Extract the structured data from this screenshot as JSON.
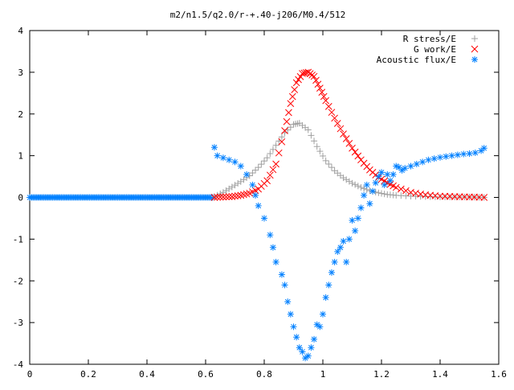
{
  "chart_data": {
    "type": "scatter",
    "title": "m2/n1.5/q2.0/r-+.40-j206/M0.4/512",
    "xlabel": "",
    "ylabel": "",
    "xlim": [
      0,
      1.6
    ],
    "ylim": [
      -4,
      4
    ],
    "x_ticks": [
      "0",
      "0.2",
      "0.4",
      "0.6",
      "0.8",
      "1",
      "1.2",
      "1.4",
      "1.6"
    ],
    "y_ticks": [
      "4",
      "3",
      "2",
      "1",
      "0",
      "-1",
      "-2",
      "-3",
      "-4"
    ],
    "grid": false,
    "legend_position": "top-right",
    "series": [
      {
        "name": "R stress/E",
        "color": "#a0a0a0",
        "marker": "plus",
        "x": [
          0.63,
          0.66,
          0.69,
          0.72,
          0.75,
          0.78,
          0.81,
          0.84,
          0.87,
          0.9,
          0.92,
          0.95,
          0.98,
          1.01,
          1.04,
          1.07,
          1.1,
          1.13,
          1.16,
          1.19,
          1.22,
          1.25,
          1.3,
          1.35,
          1.4,
          1.45,
          1.5,
          1.55
        ],
        "y": [
          0.02,
          0.12,
          0.25,
          0.38,
          0.52,
          0.72,
          0.95,
          1.25,
          1.55,
          1.75,
          1.78,
          1.62,
          1.22,
          0.88,
          0.64,
          0.47,
          0.34,
          0.24,
          0.16,
          0.11,
          0.07,
          0.05,
          0.03,
          0.02,
          0.01,
          0.01,
          0.01,
          0.0
        ]
      },
      {
        "name": "G work/E",
        "color": "#ff0000",
        "marker": "cross",
        "x": [
          0.63,
          0.66,
          0.69,
          0.72,
          0.75,
          0.78,
          0.81,
          0.84,
          0.87,
          0.89,
          0.91,
          0.93,
          0.95,
          0.97,
          0.99,
          1.01,
          1.04,
          1.07,
          1.1,
          1.13,
          1.16,
          1.19,
          1.22,
          1.25,
          1.3,
          1.35,
          1.4,
          1.45,
          1.5,
          1.55
        ],
        "y": [
          0.0,
          0.01,
          0.02,
          0.05,
          0.1,
          0.2,
          0.4,
          0.8,
          1.6,
          2.25,
          2.75,
          2.97,
          3.0,
          2.9,
          2.62,
          2.32,
          1.9,
          1.52,
          1.18,
          0.9,
          0.66,
          0.48,
          0.35,
          0.24,
          0.12,
          0.06,
          0.03,
          0.02,
          0.01,
          0.0
        ]
      },
      {
        "name": "Acoustic flux/E",
        "color": "#0080ff",
        "marker": "star",
        "x": [
          0.63,
          0.64,
          0.66,
          0.68,
          0.7,
          0.72,
          0.74,
          0.76,
          0.77,
          0.78,
          0.8,
          0.82,
          0.83,
          0.84,
          0.86,
          0.87,
          0.88,
          0.89,
          0.9,
          0.91,
          0.92,
          0.93,
          0.94,
          0.95,
          0.96,
          0.97,
          0.98,
          0.99,
          1.0,
          1.01,
          1.02,
          1.03,
          1.04,
          1.05,
          1.06,
          1.07,
          1.08,
          1.09,
          1.1,
          1.11,
          1.12,
          1.13,
          1.14,
          1.15,
          1.16,
          1.17,
          1.18,
          1.19,
          1.2,
          1.21,
          1.22,
          1.23,
          1.24,
          1.25,
          1.26,
          1.27,
          1.28,
          1.3,
          1.32,
          1.34,
          1.36,
          1.38,
          1.4,
          1.42,
          1.44,
          1.46,
          1.48,
          1.5,
          1.52,
          1.54,
          1.55
        ],
        "y": [
          1.2,
          1.0,
          0.95,
          0.9,
          0.85,
          0.75,
          0.55,
          0.3,
          0.05,
          -0.2,
          -0.5,
          -0.9,
          -1.2,
          -1.55,
          -1.85,
          -2.1,
          -2.5,
          -2.8,
          -3.1,
          -3.35,
          -3.6,
          -3.7,
          -3.85,
          -3.8,
          -3.6,
          -3.4,
          -3.05,
          -3.1,
          -2.8,
          -2.4,
          -2.1,
          -1.8,
          -1.55,
          -1.3,
          -1.2,
          -1.05,
          -1.55,
          -1.0,
          -0.55,
          -0.8,
          -0.5,
          -0.25,
          0.05,
          0.3,
          -0.15,
          0.15,
          0.35,
          0.5,
          0.6,
          0.3,
          0.55,
          0.4,
          0.55,
          0.75,
          0.72,
          0.65,
          0.7,
          0.75,
          0.8,
          0.85,
          0.9,
          0.93,
          0.96,
          0.98,
          1.0,
          1.02,
          1.04,
          1.05,
          1.07,
          1.12,
          1.18
        ]
      }
    ],
    "baseline": {
      "series": "Acoustic flux/E",
      "x_range": [
        0,
        0.63
      ],
      "y": 0
    }
  }
}
